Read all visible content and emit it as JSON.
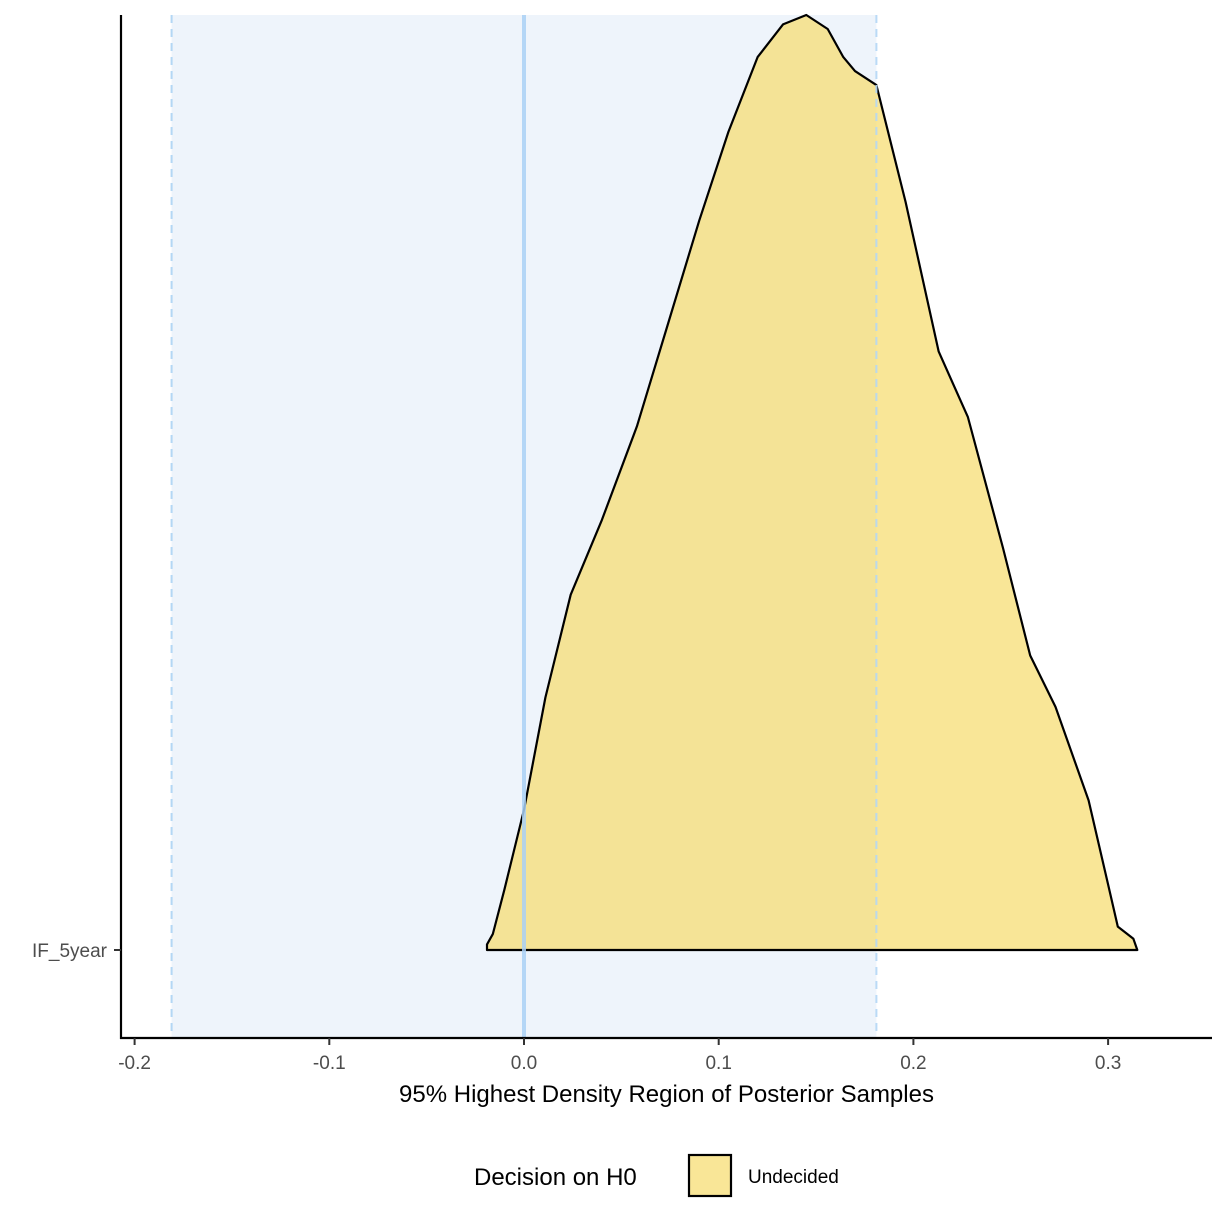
{
  "chart_data": {
    "type": "area",
    "subtype": "ridgeline-density",
    "xlabel": "95% Highest Density Region of Posterior Samples",
    "ylabel": "",
    "xlim": [
      -0.2,
      0.35
    ],
    "x_ticks": [
      -0.2,
      -0.1,
      0.0,
      0.1,
      0.2,
      0.3
    ],
    "x_tick_labels": [
      "-0.2",
      "-0.1",
      "0.0",
      "0.1",
      "0.2",
      "0.3"
    ],
    "categories": [
      "IF_5year"
    ],
    "rope": [
      -0.181,
      0.181
    ],
    "null_value": 0.0,
    "grid": false,
    "legend": {
      "title": "Decision on H0",
      "position": "bottom",
      "entries": [
        {
          "label": "Undecided",
          "color": "#f7dc6f"
        }
      ]
    },
    "series": [
      {
        "name": "Undecided",
        "category": "IF_5year",
        "fill": "#f7dc6f",
        "x": [
          -0.019,
          -0.016,
          -0.01,
          0.0,
          0.011,
          0.024,
          0.04,
          0.058,
          0.074,
          0.09,
          0.105,
          0.12,
          0.133,
          0.145,
          0.156,
          0.164,
          0.17,
          0.181,
          0.196,
          0.213,
          0.228,
          0.246,
          0.26,
          0.273,
          0.29,
          0.3,
          0.305,
          0.313,
          0.315
        ],
        "density": [
          0.006,
          0.017,
          0.065,
          0.15,
          0.27,
          0.38,
          0.46,
          0.56,
          0.67,
          0.78,
          0.875,
          0.955,
          0.99,
          1.0,
          0.985,
          0.955,
          0.94,
          0.925,
          0.8,
          0.64,
          0.57,
          0.43,
          0.315,
          0.26,
          0.16,
          0.07,
          0.025,
          0.012,
          0.0
        ]
      }
    ],
    "colors": {
      "rope_fill": "#eef4fb",
      "rope_line": "#b3d7f5",
      "null_line": "#a9d0f5",
      "density_fill": "#f7dc6f",
      "outline": "#000000"
    }
  }
}
